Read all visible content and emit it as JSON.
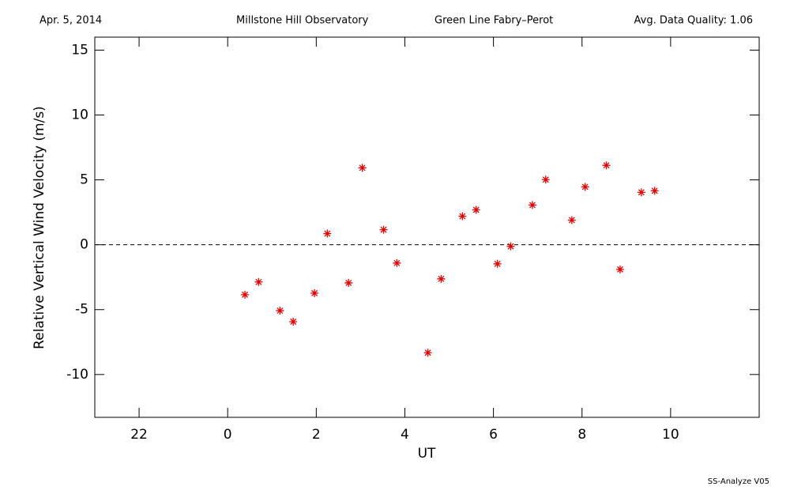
{
  "chart_data": {
    "type": "scatter",
    "header": [
      "Apr. 5, 2014",
      "Millstone Hill Observatory",
      "Green Line Fabry–Perot",
      "Avg. Data Quality: 1.06"
    ],
    "footer": "SS-Analyze V05",
    "x_label": "UT",
    "y_label": "Relative Vertical Wind Velocity (m/s)",
    "color": "#e00000",
    "x": [
      0.39,
      0.7,
      1.18,
      1.48,
      1.96,
      2.25,
      2.73,
      3.04,
      3.52,
      3.82,
      4.52,
      4.82,
      5.3,
      5.61,
      6.09,
      6.39,
      6.88,
      7.18,
      7.77,
      8.07,
      8.55,
      8.86,
      9.34,
      9.64
    ],
    "values": [
      -3.85,
      -2.87,
      -5.08,
      -5.93,
      -3.73,
      0.86,
      -2.94,
      5.93,
      1.16,
      -1.41,
      -8.32,
      -2.63,
      2.2,
      2.69,
      -1.47,
      -0.12,
      3.06,
      5.02,
      1.9,
      4.46,
      6.12,
      -1.9,
      4.04,
      4.16
    ],
    "xlim": [
      -3,
      12
    ],
    "xticks": [
      {
        "value": -2,
        "label": "22"
      },
      0,
      2,
      4,
      6,
      8,
      10
    ],
    "ylim": [
      -13.3,
      16
    ],
    "yticks": [
      -10,
      -5,
      0,
      5,
      10,
      15
    ],
    "reference_line": 0
  }
}
